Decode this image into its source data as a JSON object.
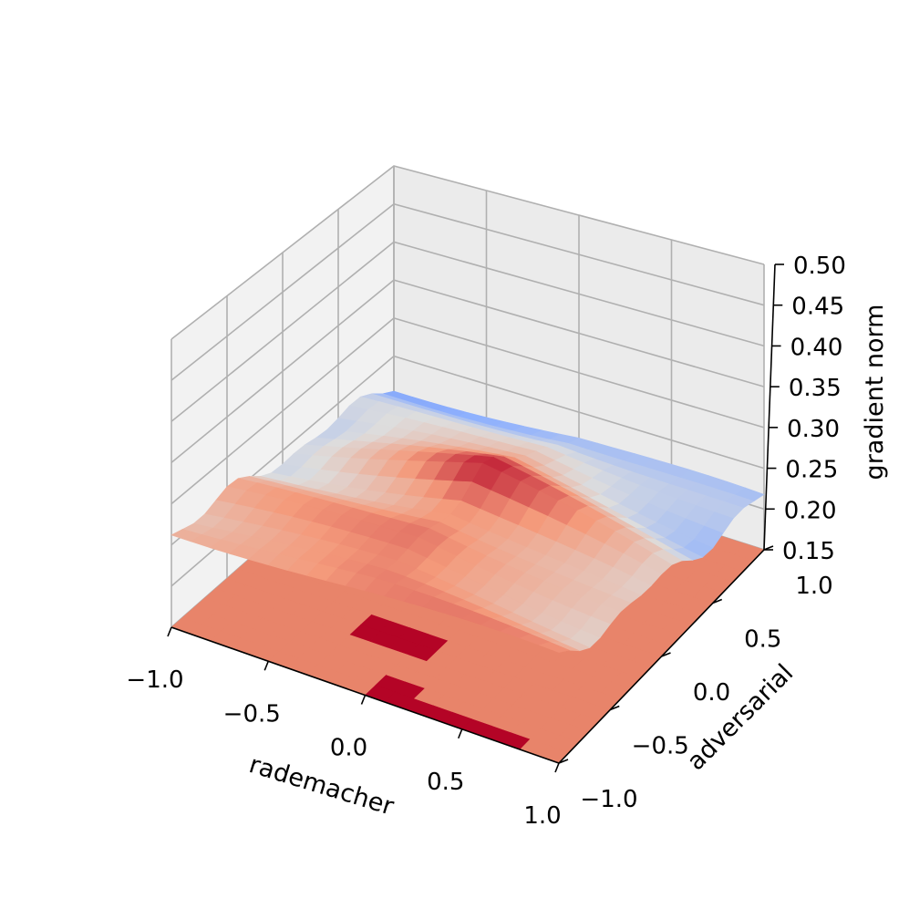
{
  "chart_data": {
    "type": "surface3d",
    "xlabel": "rademacher",
    "ylabel": "adversarial",
    "zlabel": "gradient norm",
    "xlim": [
      -1.0,
      1.0
    ],
    "ylim": [
      -1.0,
      1.0
    ],
    "zlim": [
      0.15,
      0.5
    ],
    "x_ticks": [
      "−1.0",
      "−0.5",
      "0.0",
      "0.5",
      "1.0"
    ],
    "y_ticks": [
      "−1.0",
      "−0.5",
      "0.0",
      "0.5",
      "1.0"
    ],
    "z_ticks": [
      "0.15",
      "0.20",
      "0.25",
      "0.30",
      "0.35",
      "0.40",
      "0.45",
      "0.50"
    ],
    "colormap": "coolwarm",
    "colors": {
      "pane_left": "#f2f2f2",
      "pane_back": "#ebebeb",
      "pane_floor": "#f5f5f5",
      "contour_low": "#e8846a",
      "contour_high": "#b40426"
    },
    "grid": true,
    "surface_approx": {
      "description_values": "z ≈ 0.20 + 0.03*(1 - y) + 0.05*(1-|x|)*(1 - |y-0.1|) per grid point, range approx 0.18–0.30",
      "grid_size": 21
    },
    "floor_contour": {
      "z": 0.15,
      "levels_shown": [
        "low",
        "mid",
        "high"
      ]
    }
  }
}
